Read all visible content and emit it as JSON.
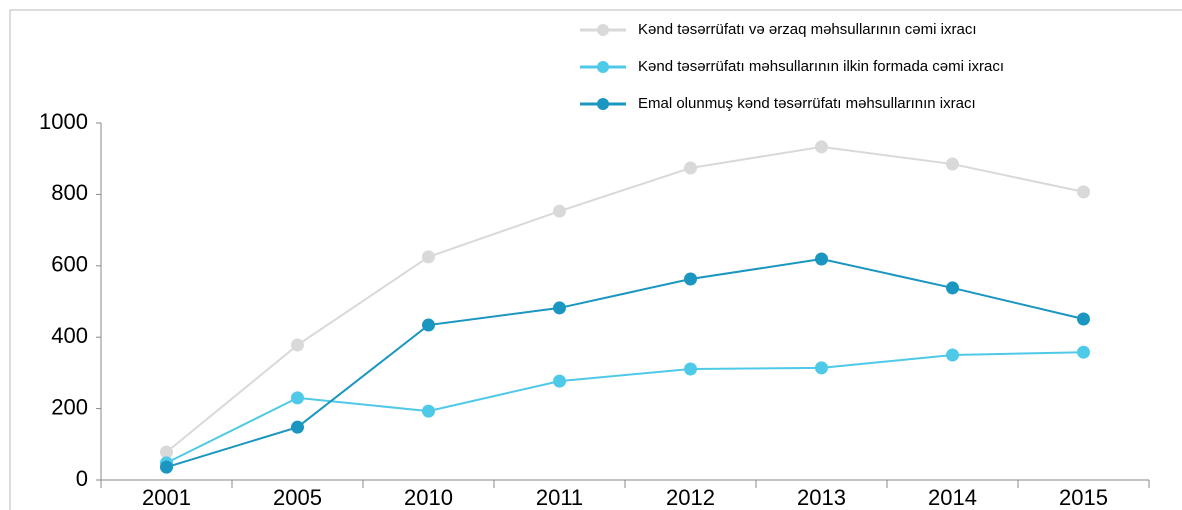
{
  "chart_data": {
    "type": "line",
    "categories": [
      "2001",
      "2005",
      "2010",
      "2011",
      "2012",
      "2013",
      "2014",
      "2015"
    ],
    "series": [
      {
        "name": "Kənd təsərrüfatı və ərzaq məhsullarının cəmi ixracı",
        "color": "#d9d9d9",
        "values": [
          78,
          378,
          625,
          753,
          874,
          933,
          885,
          807
        ]
      },
      {
        "name": "Kənd təsərrüfatı məhsullarının ilkin formada cəmi ixracı",
        "color": "#4fc9e8",
        "values": [
          48,
          230,
          193,
          277,
          311,
          314,
          350,
          358
        ]
      },
      {
        "name": "Emal olunmuş kənd təsərrüfatı məhsullarının ixracı",
        "color": "#1a96c0",
        "values": [
          36,
          148,
          434,
          482,
          563,
          619,
          538,
          451
        ]
      }
    ],
    "ylim": [
      0,
      1000
    ],
    "yticks": [
      0,
      200,
      400,
      600,
      800,
      1000
    ],
    "grid": false,
    "legend": "top-right"
  }
}
